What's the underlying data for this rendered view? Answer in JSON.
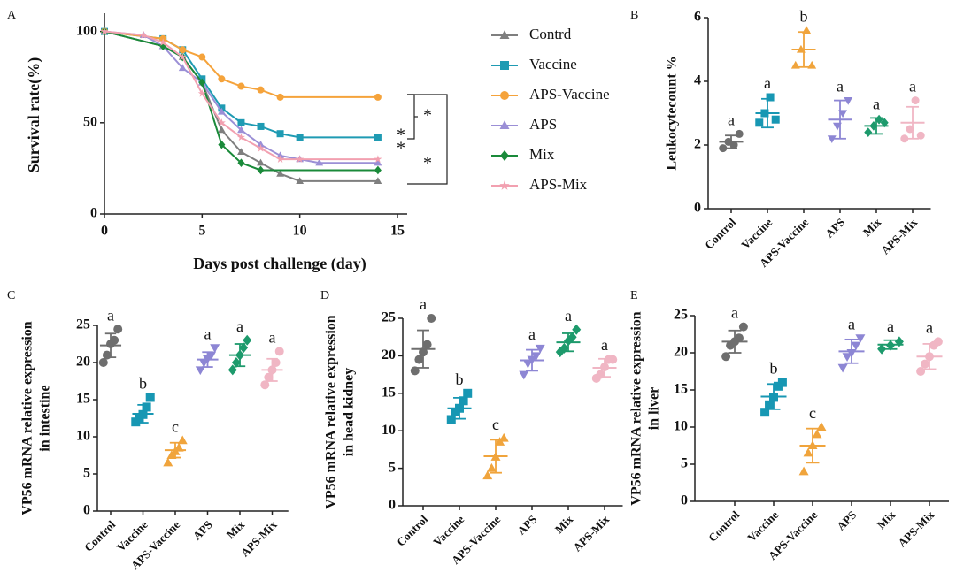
{
  "chart_data": [
    {
      "type": "line",
      "panel": "A",
      "xlabel": "Days post challenge (day)",
      "ylabel": "Survival rate(%)",
      "xlim": [
        0,
        15.5
      ],
      "xticks": [
        0,
        5,
        10,
        15
      ],
      "ylim": [
        0,
        110
      ],
      "yticks": [
        0,
        50,
        100
      ],
      "annotations": [
        "*",
        "*",
        "*",
        "*"
      ],
      "series": [
        {
          "name": "Contrd",
          "color": "#7f7f7f",
          "marker": "triangle",
          "x": [
            0,
            3,
            4,
            5,
            6,
            7,
            8,
            9,
            10,
            14
          ],
          "values": [
            100,
            92,
            86,
            72,
            46,
            34,
            28,
            22,
            18,
            18
          ]
        },
        {
          "name": "Vaccine",
          "color": "#1f9bb3",
          "marker": "square",
          "x": [
            0,
            3,
            4,
            5,
            6,
            7,
            8,
            9,
            10,
            14
          ],
          "values": [
            100,
            96,
            90,
            74,
            58,
            50,
            48,
            44,
            42,
            42
          ]
        },
        {
          "name": "APS-Vaccine",
          "color": "#f5a33b",
          "marker": "circle",
          "x": [
            0,
            3,
            4,
            5,
            6,
            7,
            8,
            9,
            14
          ],
          "values": [
            100,
            96,
            90,
            86,
            74,
            70,
            68,
            64,
            64
          ]
        },
        {
          "name": "APS",
          "color": "#9b8fd6",
          "marker": "triangle",
          "x": [
            0,
            2,
            3,
            4,
            5,
            6,
            7,
            8,
            9,
            10,
            11,
            14
          ],
          "values": [
            100,
            98,
            92,
            80,
            72,
            56,
            46,
            38,
            32,
            30,
            28,
            28
          ]
        },
        {
          "name": "Mix",
          "color": "#1a8a3a",
          "marker": "diamond",
          "x": [
            0,
            3,
            4,
            5,
            6,
            7,
            8,
            14
          ],
          "values": [
            100,
            92,
            86,
            72,
            38,
            28,
            24,
            24
          ]
        },
        {
          "name": "APS-Mix",
          "color": "#f2a0b0",
          "marker": "star",
          "x": [
            0,
            2,
            3,
            4,
            5,
            6,
            7,
            8,
            9,
            10,
            14
          ],
          "values": [
            100,
            98,
            94,
            86,
            66,
            50,
            42,
            36,
            30,
            30,
            30
          ]
        }
      ]
    },
    {
      "type": "dot",
      "panel": "B",
      "ylabel": [
        "Leukocytecount %"
      ],
      "ylim": [
        0,
        6
      ],
      "yticks": [
        0,
        2,
        4,
        6
      ],
      "categories": [
        "Control",
        "Vaccine",
        "APS-Vaccine",
        "APS",
        "Mix",
        "APS-Mix"
      ],
      "colors": [
        "#6e6e6e",
        "#1797b3",
        "#f0a43c",
        "#8d86d4",
        "#1d9a6c",
        "#f0b6c4"
      ],
      "markers": [
        "circle",
        "square",
        "triangle",
        "triangle-down",
        "diamond",
        "circle"
      ],
      "points": [
        [
          1.9,
          2.1,
          2.0,
          2.35
        ],
        [
          2.7,
          3.0,
          3.5,
          2.8
        ],
        [
          4.5,
          5.0,
          5.6,
          4.5
        ],
        [
          2.2,
          2.6,
          3.0,
          3.4
        ],
        [
          2.4,
          2.6,
          2.8,
          2.7
        ],
        [
          2.2,
          2.5,
          3.4,
          2.3
        ]
      ],
      "means": [
        2.1,
        3.0,
        5.0,
        2.8,
        2.6,
        2.7
      ],
      "sds": [
        0.2,
        0.45,
        0.55,
        0.6,
        0.25,
        0.5
      ],
      "letters": [
        "a",
        "a",
        "b",
        "a",
        "a",
        "a"
      ]
    },
    {
      "type": "dot",
      "panel": "C",
      "ylabel": [
        "VP56 mRNA relative expression",
        "in intestine"
      ],
      "ylim": [
        0,
        25
      ],
      "yticks": [
        0,
        5,
        10,
        15,
        20,
        25
      ],
      "categories": [
        "Control",
        "Vaccine",
        "APS-Vaccine",
        "APS",
        "Mix",
        "APS-Mix"
      ],
      "colors": [
        "#6e6e6e",
        "#1797b3",
        "#f0a43c",
        "#8d86d4",
        "#1d9a6c",
        "#f0b6c4"
      ],
      "markers": [
        "circle",
        "square",
        "triangle",
        "triangle-down",
        "diamond",
        "circle"
      ],
      "points": [
        [
          20,
          21,
          22.5,
          23,
          24.5
        ],
        [
          12,
          12.5,
          13,
          14,
          15.3
        ],
        [
          6.5,
          7.5,
          8,
          8.5,
          9.5
        ],
        [
          19,
          20,
          20.5,
          21,
          22
        ],
        [
          19,
          20,
          21,
          22,
          23
        ],
        [
          17,
          18,
          19,
          20,
          21.5
        ]
      ],
      "means": [
        22.3,
        13.1,
        8.2,
        20.4,
        21,
        19
      ],
      "sds": [
        1.6,
        1.2,
        1.0,
        1.0,
        1.5,
        1.5
      ],
      "letters": [
        "a",
        "b",
        "c",
        "a",
        "a",
        "a"
      ]
    },
    {
      "type": "dot",
      "panel": "D",
      "ylabel": [
        "VP56 mRNA relative expression",
        "in head kidney"
      ],
      "ylim": [
        0,
        25
      ],
      "yticks": [
        0,
        5,
        10,
        15,
        20,
        25
      ],
      "categories": [
        "Control",
        "Vaccine",
        "APS-Vaccine",
        "APS",
        "Mix",
        "APS-Mix"
      ],
      "colors": [
        "#6e6e6e",
        "#1797b3",
        "#f0a43c",
        "#8d86d4",
        "#1d9a6c",
        "#f0b6c4"
      ],
      "markers": [
        "circle",
        "square",
        "triangle",
        "triangle-down",
        "diamond",
        "circle"
      ],
      "points": [
        [
          18,
          19.5,
          20.5,
          21.5,
          25
        ],
        [
          11.5,
          12.5,
          13,
          14,
          15
        ],
        [
          4,
          5,
          6.5,
          8.5,
          9
        ],
        [
          17.5,
          19,
          19.5,
          20,
          21
        ],
        [
          20.5,
          21,
          22,
          22.5,
          23.5
        ],
        [
          17,
          17.5,
          18.5,
          19.5,
          19.5
        ]
      ],
      "means": [
        20.9,
        13,
        6.6,
        19.4,
        21.8,
        18.4
      ],
      "sds": [
        2.5,
        1.4,
        2.2,
        1.4,
        1.2,
        1.2
      ],
      "letters": [
        "a",
        "b",
        "c",
        "a",
        "a",
        "a"
      ]
    },
    {
      "type": "dot",
      "panel": "E",
      "ylabel": [
        "VP56 mRNA relative expression",
        "in liver"
      ],
      "ylim": [
        0,
        25
      ],
      "yticks": [
        0,
        5,
        10,
        15,
        20,
        25
      ],
      "categories": [
        "Control",
        "Vaccine",
        "APS-Vaccine",
        "APS",
        "Mix",
        "APS-Mix"
      ],
      "colors": [
        "#6e6e6e",
        "#1797b3",
        "#f0a43c",
        "#8d86d4",
        "#1d9a6c",
        "#f0b6c4"
      ],
      "markers": [
        "circle",
        "square",
        "triangle",
        "triangle-down",
        "diamond",
        "circle"
      ],
      "points": [
        [
          19.5,
          21,
          21.5,
          22,
          23.5
        ],
        [
          12,
          13,
          14,
          15.5,
          16
        ],
        [
          4,
          6.5,
          7.5,
          9,
          10
        ],
        [
          18,
          19.5,
          20,
          21,
          22
        ],
        [
          20.5,
          21,
          21.5
        ],
        [
          17.5,
          18.5,
          19.5,
          21,
          21.5
        ]
      ],
      "means": [
        21.5,
        14.1,
        7.5,
        20.2,
        21.1,
        19.5
      ],
      "sds": [
        1.5,
        1.7,
        2.3,
        1.6,
        0.6,
        1.7
      ],
      "letters": [
        "a",
        "b",
        "c",
        "a",
        "a",
        "a"
      ]
    }
  ]
}
